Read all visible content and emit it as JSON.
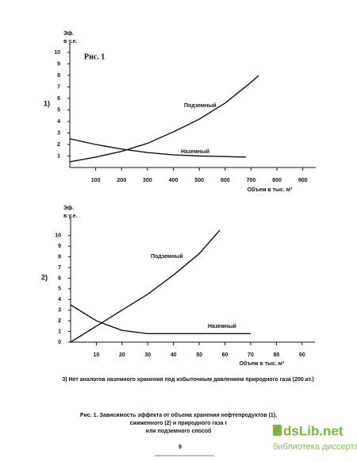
{
  "chart_data": [
    {
      "type": "line",
      "label": "1)",
      "annotation": "Рис. 1",
      "ylabel": [
        "Эф.",
        "в у.е."
      ],
      "xlabel": "Объем в тыс. м³",
      "xlim": [
        0,
        950
      ],
      "xticks": [
        100,
        200,
        300,
        400,
        500,
        600,
        700,
        800,
        900
      ],
      "ylim": [
        0,
        10
      ],
      "yticks": [
        1,
        2,
        3,
        4,
        5,
        6,
        7,
        8,
        9,
        10
      ],
      "series": [
        {
          "name": "Подземный",
          "color": "#111111",
          "x": [
            0,
            100,
            200,
            300,
            400,
            500,
            600,
            700,
            730
          ],
          "values": [
            0.5,
            0.9,
            1.4,
            2.1,
            3.1,
            4.2,
            5.6,
            7.4,
            8.0
          ]
        },
        {
          "name": "Наземный",
          "color": "#111111",
          "x": [
            0,
            100,
            200,
            300,
            400,
            500,
            600,
            680
          ],
          "values": [
            2.5,
            2.0,
            1.6,
            1.3,
            1.1,
            1.0,
            0.95,
            0.9
          ]
        }
      ]
    },
    {
      "type": "line",
      "label": "2)",
      "ylabel": [
        "Эф.",
        "в у.е."
      ],
      "xlabel": "Объем в тыс. м³",
      "xlim": [
        0,
        95
      ],
      "xticks": [
        10,
        20,
        30,
        40,
        50,
        60,
        70,
        80,
        90
      ],
      "ylim": [
        0,
        10.8
      ],
      "yticks": [
        0,
        1,
        2,
        3,
        4,
        5,
        6,
        7,
        8,
        9,
        10
      ],
      "series": [
        {
          "name": "Подземный",
          "color": "#111111",
          "x": [
            0,
            10,
            20,
            30,
            40,
            50,
            58
          ],
          "values": [
            0,
            1.5,
            3.0,
            4.5,
            6.3,
            8.3,
            10.5
          ]
        },
        {
          "name": "Наземный",
          "color": "#111111",
          "x": [
            0,
            10,
            20,
            30,
            40,
            50,
            60,
            70
          ],
          "values": [
            3.5,
            2.0,
            1.1,
            0.8,
            0.8,
            0.8,
            0.8,
            0.8
          ]
        }
      ]
    }
  ],
  "note": "3) Нет аналогов наземного хранения под избыточным давлением природного газа (200 ат.)",
  "caption": [
    "Рис. 1. Зависимость эффекта от объема хранения нефтепродуктов (1),",
    "сжиженного (2) и природного газа г",
    "или подземного способ"
  ],
  "page_number": "9",
  "watermark": {
    "site": "dsLib.net",
    "tagline": "библиотека диссертаций"
  }
}
